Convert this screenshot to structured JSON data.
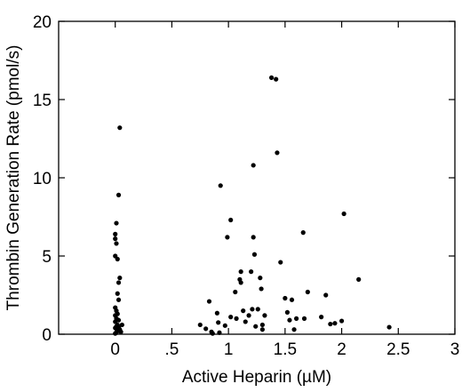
{
  "chart_data": {
    "type": "scatter",
    "title": "",
    "xlabel": "Active Heparin (µM)",
    "ylabel": "Thrombin Generation Rate (pmol/s)",
    "xlim": [
      -0.5,
      3
    ],
    "ylim": [
      0,
      20
    ],
    "x_ticks": [
      0,
      0.5,
      1,
      1.5,
      2,
      2.5,
      3
    ],
    "x_tick_labels": [
      "0",
      ".5",
      "1",
      "1.5",
      "2",
      "2.5",
      "3"
    ],
    "y_ticks": [
      0,
      5,
      10,
      15,
      20
    ],
    "y_tick_labels": [
      "0",
      "5",
      "10",
      "15",
      "20"
    ],
    "grid": false,
    "legend": "none",
    "marker_color": "#000000",
    "series": [
      {
        "points": [
          [
            0.04,
            13.2
          ],
          [
            0.03,
            8.9
          ],
          [
            0.01,
            7.1
          ],
          [
            0.0,
            6.4
          ],
          [
            0.0,
            6.1
          ],
          [
            0.01,
            5.8
          ],
          [
            0.0,
            5.0
          ],
          [
            0.02,
            4.8
          ],
          [
            0.04,
            3.6
          ],
          [
            0.03,
            3.3
          ],
          [
            0.02,
            2.6
          ],
          [
            0.03,
            2.2
          ],
          [
            0.0,
            1.7
          ],
          [
            0.01,
            1.5
          ],
          [
            0.02,
            1.3
          ],
          [
            0.0,
            1.2
          ],
          [
            0.01,
            1.0
          ],
          [
            0.03,
            0.9
          ],
          [
            0.0,
            0.8
          ],
          [
            0.02,
            0.6
          ],
          [
            0.01,
            0.5
          ],
          [
            0.0,
            0.4
          ],
          [
            0.04,
            0.3
          ],
          [
            0.02,
            0.2
          ],
          [
            0.01,
            0.1
          ],
          [
            0.05,
            0.15
          ],
          [
            0.0,
            0.05
          ],
          [
            0.03,
            0.45
          ],
          [
            0.06,
            0.6
          ],
          [
            0.75,
            0.6
          ],
          [
            0.8,
            0.35
          ],
          [
            0.85,
            0.15
          ],
          [
            0.86,
            0.05
          ],
          [
            0.83,
            2.1
          ],
          [
            0.9,
            1.35
          ],
          [
            0.91,
            0.75
          ],
          [
            0.92,
            0.1
          ],
          [
            0.93,
            9.5
          ],
          [
            0.97,
            0.55
          ],
          [
            0.99,
            6.2
          ],
          [
            1.02,
            7.3
          ],
          [
            1.02,
            1.1
          ],
          [
            1.06,
            2.7
          ],
          [
            1.07,
            1.0
          ],
          [
            1.1,
            3.5
          ],
          [
            1.11,
            4.0
          ],
          [
            1.11,
            3.3
          ],
          [
            1.13,
            1.5
          ],
          [
            1.15,
            0.8
          ],
          [
            1.18,
            1.2
          ],
          [
            1.2,
            4.0
          ],
          [
            1.21,
            1.6
          ],
          [
            1.22,
            10.8
          ],
          [
            1.22,
            6.2
          ],
          [
            1.23,
            5.1
          ],
          [
            1.24,
            0.5
          ],
          [
            1.26,
            1.6
          ],
          [
            1.28,
            3.6
          ],
          [
            1.29,
            2.9
          ],
          [
            1.3,
            0.6
          ],
          [
            1.3,
            0.3
          ],
          [
            1.32,
            1.2
          ],
          [
            1.38,
            16.4
          ],
          [
            1.42,
            16.3
          ],
          [
            1.43,
            11.6
          ],
          [
            1.46,
            4.6
          ],
          [
            1.5,
            2.3
          ],
          [
            1.52,
            1.4
          ],
          [
            1.54,
            0.9
          ],
          [
            1.56,
            2.2
          ],
          [
            1.58,
            0.3
          ],
          [
            1.6,
            1.0
          ],
          [
            1.66,
            6.5
          ],
          [
            1.67,
            1.0
          ],
          [
            1.7,
            2.7
          ],
          [
            1.82,
            1.1
          ],
          [
            1.86,
            2.5
          ],
          [
            1.9,
            0.65
          ],
          [
            1.94,
            0.7
          ],
          [
            2.0,
            0.85
          ],
          [
            2.02,
            7.7
          ],
          [
            2.15,
            3.5
          ],
          [
            2.42,
            0.45
          ]
        ]
      }
    ]
  }
}
